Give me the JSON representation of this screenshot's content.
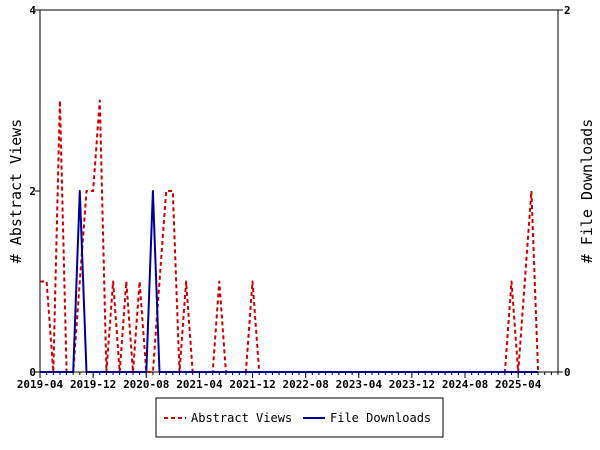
{
  "chart_data": {
    "type": "line",
    "xlabel": "",
    "ylabel": "# Abstract Views",
    "y2label": "# File Downloads",
    "x_range": [
      "2019-04",
      "2025-10"
    ],
    "ylim": [
      0,
      4
    ],
    "y2lim": [
      0,
      2
    ],
    "y_ticks": [
      "0",
      "2",
      "4"
    ],
    "y2_ticks": [
      "0",
      "2"
    ],
    "x_tick_labels": [
      "2019-04",
      "2019-12",
      "2020-08",
      "2021-04",
      "2021-12",
      "2022-08",
      "2023-04",
      "2023-12",
      "2024-08",
      "2025-04"
    ],
    "grid": false,
    "legend": "bottom",
    "series": [
      {
        "name": "Abstract Views",
        "axis": "left",
        "color": "#cc0000",
        "dash": "dashed",
        "x": [
          "2019-04",
          "2019-05",
          "2019-06",
          "2019-07",
          "2019-08",
          "2019-09",
          "2019-10",
          "2019-11",
          "2019-12",
          "2020-01",
          "2020-02",
          "2020-03",
          "2020-04",
          "2020-05",
          "2020-06",
          "2020-07",
          "2020-08",
          "2020-09",
          "2020-10",
          "2020-11",
          "2020-12",
          "2021-01",
          "2021-02",
          "2021-03",
          "2021-04",
          "2021-05",
          "2021-06",
          "2021-07",
          "2021-08",
          "2021-09",
          "2021-10",
          "2021-11",
          "2021-12",
          "2022-01",
          "2025-02",
          "2025-03",
          "2025-04",
          "2025-05",
          "2025-06",
          "2025-07"
        ],
        "values": [
          1,
          1,
          0,
          3,
          0,
          0,
          1,
          2,
          2,
          3,
          0,
          1,
          0,
          1,
          0,
          1,
          0,
          0,
          1,
          2,
          2,
          0,
          1,
          0,
          0,
          0,
          0,
          1,
          0,
          0,
          0,
          0,
          1,
          0,
          0,
          1,
          0,
          1,
          2,
          0
        ]
      },
      {
        "name": "File Downloads",
        "axis": "right",
        "color": "#000099",
        "dash": "solid",
        "x": [
          "2019-04",
          "2019-09",
          "2019-10",
          "2019-11",
          "2020-08",
          "2020-09",
          "2020-10",
          "2025-07"
        ],
        "values": [
          0,
          0,
          1,
          0,
          0,
          1,
          0,
          0
        ]
      }
    ]
  }
}
